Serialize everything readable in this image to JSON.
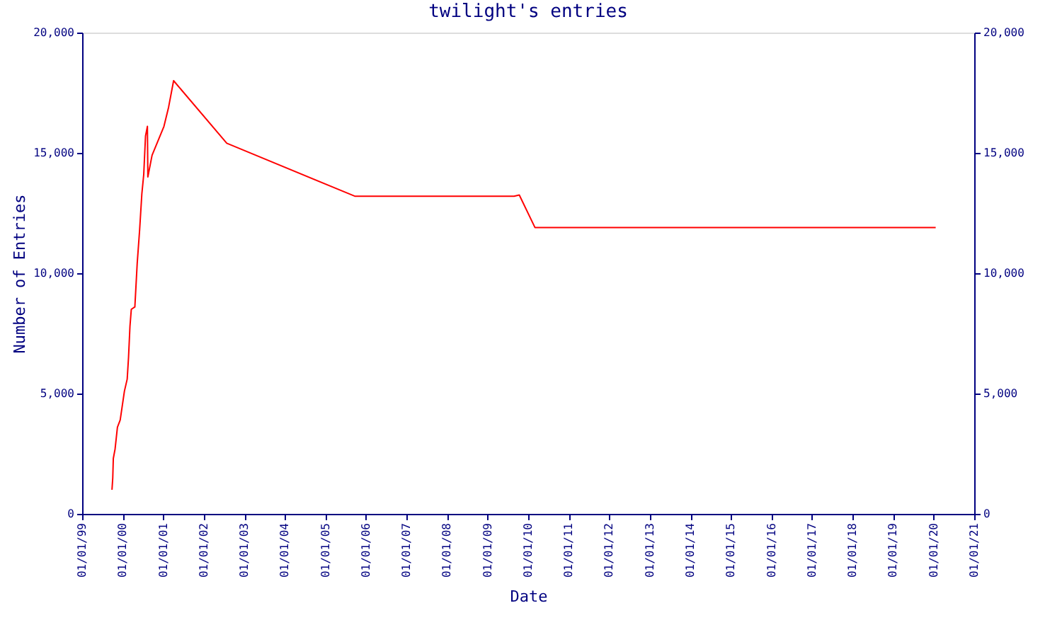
{
  "chart_data": {
    "type": "line",
    "title": "twilight's entries",
    "xlabel": "Date",
    "ylabel": "Number of Entries",
    "x": [
      "1999-09-27",
      "1999-10-04",
      "1999-10-09",
      "1999-10-25",
      "1999-11-15",
      "1999-12-10",
      "2000-01-17",
      "2000-02-11",
      "2000-02-23",
      "2000-03-07",
      "2000-03-19",
      "2000-04-20",
      "2000-05-11",
      "2000-06-02",
      "2000-06-22",
      "2000-07-09",
      "2000-07-25",
      "2000-08-11",
      "2000-08-15",
      "2000-09-22",
      "2001-01-07",
      "2001-02-18",
      "2001-04-04",
      "2002-07-27",
      "2005-09-22",
      "2009-08-27",
      "2009-10-13",
      "2010-03-03",
      "2020-01-20"
    ],
    "series": [
      {
        "color": "#ff0000",
        "values": [
          1000,
          1500,
          2300,
          2700,
          3600,
          3900,
          5100,
          5600,
          6500,
          7800,
          8500,
          8600,
          10400,
          11800,
          13300,
          14100,
          15700,
          16100,
          14000,
          14900,
          16100,
          16900,
          18000,
          15400,
          13200,
          13200,
          13250,
          11900,
          11900
        ]
      }
    ],
    "xlim": [
      "1999-01-01",
      "2021-01-01"
    ],
    "xticks": [
      {
        "value": "1999-01-01",
        "label": "01/01/99"
      },
      {
        "value": "2000-01-01",
        "label": "01/01/00"
      },
      {
        "value": "2001-01-01",
        "label": "01/01/01"
      },
      {
        "value": "2002-01-01",
        "label": "01/01/02"
      },
      {
        "value": "2003-01-01",
        "label": "01/01/03"
      },
      {
        "value": "2004-01-01",
        "label": "01/01/04"
      },
      {
        "value": "2005-01-01",
        "label": "01/01/05"
      },
      {
        "value": "2006-01-01",
        "label": "01/01/06"
      },
      {
        "value": "2007-01-01",
        "label": "01/01/07"
      },
      {
        "value": "2008-01-01",
        "label": "01/01/08"
      },
      {
        "value": "2009-01-01",
        "label": "01/01/09"
      },
      {
        "value": "2010-01-01",
        "label": "01/01/10"
      },
      {
        "value": "2011-01-01",
        "label": "01/01/11"
      },
      {
        "value": "2012-01-01",
        "label": "01/01/12"
      },
      {
        "value": "2013-01-01",
        "label": "01/01/13"
      },
      {
        "value": "2014-01-01",
        "label": "01/01/14"
      },
      {
        "value": "2015-01-01",
        "label": "01/01/15"
      },
      {
        "value": "2016-01-01",
        "label": "01/01/16"
      },
      {
        "value": "2017-01-01",
        "label": "01/01/17"
      },
      {
        "value": "2018-01-01",
        "label": "01/01/18"
      },
      {
        "value": "2019-01-01",
        "label": "01/01/19"
      },
      {
        "value": "2020-01-01",
        "label": "01/01/20"
      },
      {
        "value": "2021-01-01",
        "label": "01/01/21"
      }
    ],
    "ylim": [
      0,
      20000
    ],
    "yticks": [
      0,
      {
        "value": 5000,
        "label": "5,000"
      },
      {
        "value": 10000,
        "label": "10,000"
      },
      {
        "value": 15000,
        "label": "15,000"
      },
      {
        "value": 20000,
        "label": "20,000"
      }
    ],
    "y2lim": [
      0,
      20000
    ],
    "y2ticks": [
      0,
      {
        "value": 5000,
        "label": "5,000"
      },
      {
        "value": 10000,
        "label": "10,000"
      },
      {
        "value": 15000,
        "label": "15,000"
      },
      {
        "value": 20000,
        "label": "20,000"
      }
    ],
    "grid": false,
    "marker": "none",
    "line_style": "solid"
  }
}
